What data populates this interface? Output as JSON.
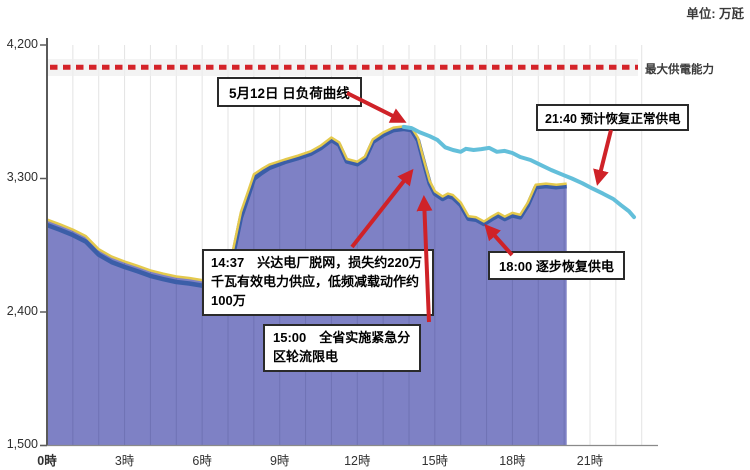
{
  "unit_label": "单位: 万瓩",
  "max_supply_label": "最大供電能力",
  "annotations": {
    "load_curve": "5月12日 日负荷曲线",
    "restore_full": "21:40 预计恢复正常供电",
    "plant_trip": "14:37　兴达电厂脱网，损失约220万千瓦有效电力供应，低频减载动作约100万",
    "rationing": "15:00　全省实施紧急分区轮流限电",
    "gradual_restore": "18:00 逐步恢复供电"
  },
  "colors": {
    "area_fill": "#7e81c5",
    "area_top_edge": "#e4c94d",
    "inner_blue_line": "#3b5ea8",
    "forecast_line": "#63bfda",
    "red_accent": "#cf2228",
    "grid": "#e3e3e3",
    "axis": "#5a5a5a"
  },
  "chart_data": {
    "type": "area",
    "title": "5月12日 日负荷曲线",
    "unit": "万瓩",
    "grid": "hourly-vertical",
    "legend_position": "none",
    "x_axis": {
      "label": "時",
      "range_hours": [
        0,
        24
      ],
      "ticks": [
        {
          "label": "0時",
          "hour": 0,
          "bold": true
        },
        {
          "label": "3時",
          "hour": 3
        },
        {
          "label": "6時",
          "hour": 6
        },
        {
          "label": "9時",
          "hour": 9
        },
        {
          "label": "12時",
          "hour": 12
        },
        {
          "label": "15時",
          "hour": 15
        },
        {
          "label": "18時",
          "hour": 18
        },
        {
          "label": "21時",
          "hour": 21
        }
      ]
    },
    "y_axis": {
      "range": [
        1500,
        4200
      ],
      "ticks": [
        {
          "label": "4,200",
          "value": 4200
        },
        {
          "label": "3,300",
          "value": 3300
        },
        {
          "label": "2,400",
          "value": 2400
        },
        {
          "label": "1,500",
          "value": 1500
        }
      ]
    },
    "max_supply_line": {
      "value": 4050,
      "label": "最大供電能力",
      "style": "red-dotted"
    },
    "series": [
      {
        "name": "actual_load_may12",
        "type": "area",
        "points": [
          [
            0,
            3020
          ],
          [
            0.5,
            2988
          ],
          [
            1,
            2952
          ],
          [
            1.5,
            2908
          ],
          [
            2,
            2820
          ],
          [
            2.5,
            2770
          ],
          [
            3,
            2737
          ],
          [
            3.5,
            2708
          ],
          [
            4,
            2677
          ],
          [
            4.5,
            2655
          ],
          [
            5,
            2636
          ],
          [
            5.5,
            2626
          ],
          [
            6,
            2612
          ],
          [
            6.5,
            2604
          ],
          [
            7,
            2640
          ],
          [
            7.2,
            2820
          ],
          [
            7.5,
            3070
          ],
          [
            7.8,
            3222
          ],
          [
            8,
            3325
          ],
          [
            8.3,
            3360
          ],
          [
            8.6,
            3390
          ],
          [
            9.2,
            3425
          ],
          [
            9.7,
            3450
          ],
          [
            10.2,
            3480
          ],
          [
            10.6,
            3520
          ],
          [
            11,
            3573
          ],
          [
            11.3,
            3540
          ],
          [
            11.6,
            3428
          ],
          [
            12,
            3410
          ],
          [
            12.3,
            3445
          ],
          [
            12.6,
            3560
          ],
          [
            13,
            3607
          ],
          [
            13.4,
            3640
          ],
          [
            13.8,
            3648
          ],
          [
            14.1,
            3640
          ],
          [
            14.35,
            3570
          ],
          [
            14.6,
            3405
          ],
          [
            14.8,
            3280
          ],
          [
            15,
            3210
          ],
          [
            15.3,
            3175
          ],
          [
            15.5,
            3195
          ],
          [
            15.7,
            3185
          ],
          [
            16,
            3135
          ],
          [
            16.3,
            3042
          ],
          [
            16.6,
            3035
          ],
          [
            16.9,
            3007
          ],
          [
            17.2,
            3040
          ],
          [
            17.45,
            3065
          ],
          [
            17.7,
            3040
          ],
          [
            18,
            3065
          ],
          [
            18.3,
            3052
          ],
          [
            18.6,
            3135
          ],
          [
            18.9,
            3255
          ],
          [
            19.3,
            3262
          ],
          [
            19.7,
            3255
          ],
          [
            20.1,
            3262
          ]
        ]
      },
      {
        "name": "forecast_recovery",
        "type": "line",
        "points": [
          [
            13.8,
            3648
          ],
          [
            14.1,
            3640
          ],
          [
            14.4,
            3613
          ],
          [
            14.8,
            3585
          ],
          [
            15.1,
            3560
          ],
          [
            15.4,
            3510
          ],
          [
            15.7,
            3492
          ],
          [
            16,
            3480
          ],
          [
            16.2,
            3500
          ],
          [
            16.5,
            3492
          ],
          [
            16.8,
            3498
          ],
          [
            17.1,
            3506
          ],
          [
            17.4,
            3480
          ],
          [
            17.7,
            3486
          ],
          [
            18,
            3472
          ],
          [
            18.3,
            3445
          ],
          [
            18.7,
            3425
          ],
          [
            19.1,
            3390
          ],
          [
            19.5,
            3357
          ],
          [
            19.9,
            3328
          ],
          [
            20.3,
            3300
          ],
          [
            20.7,
            3268
          ],
          [
            21.1,
            3232
          ],
          [
            21.5,
            3198
          ],
          [
            21.9,
            3162
          ],
          [
            22.2,
            3120
          ],
          [
            22.5,
            3080
          ],
          [
            22.7,
            3040
          ]
        ]
      }
    ]
  }
}
